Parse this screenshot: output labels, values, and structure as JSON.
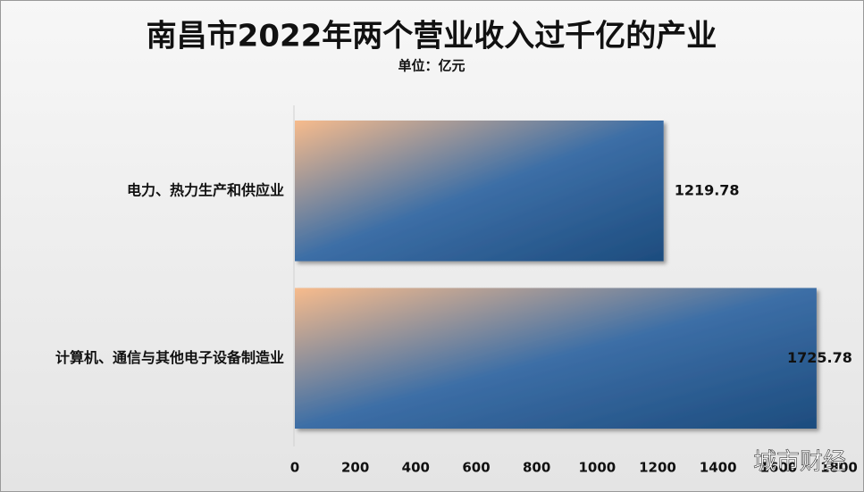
{
  "chart_data": {
    "type": "bar",
    "orientation": "horizontal",
    "title": "南昌市2022年两个营业收入过千亿的产业",
    "subtitle": "单位：亿元",
    "categories": [
      "电力、热力生产和供应业",
      "计算机、通信与其他电子设备制造业"
    ],
    "values": [
      1219.78,
      1725.78
    ],
    "xlim": [
      0,
      1800
    ],
    "xticks": [
      0,
      200,
      400,
      600,
      800,
      1000,
      1200,
      1400,
      1600,
      1800
    ],
    "watermark": "城市财经"
  }
}
